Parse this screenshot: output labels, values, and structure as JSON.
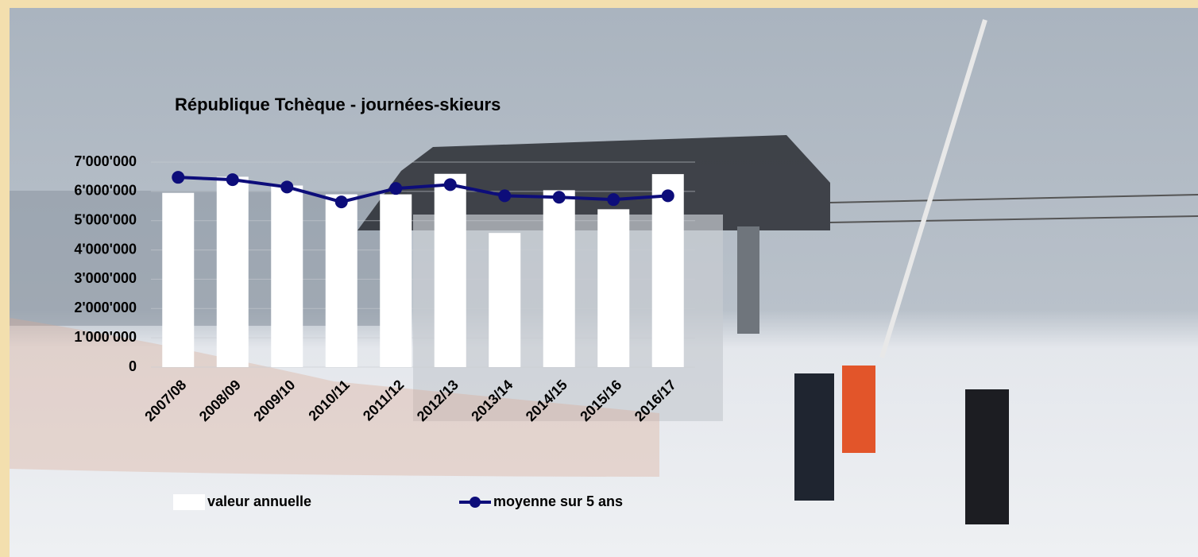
{
  "chart_data": {
    "type": "bar",
    "title": "République Tchèque - journées-skieurs",
    "categories": [
      "2007/08",
      "2008/09",
      "2009/10",
      "2010/11",
      "2011/12",
      "2012/13",
      "2013/14",
      "2014/15",
      "2015/16",
      "2016/17"
    ],
    "series": [
      {
        "name": "valeur annuelle",
        "type": "bar",
        "color": "#ffffff",
        "values": [
          5950000,
          6500000,
          6200000,
          5900000,
          5900000,
          6600000,
          4580000,
          6040000,
          5390000,
          6590000
        ]
      },
      {
        "name": "moyenne sur 5 ans",
        "type": "line",
        "color": "#0d0d7a",
        "values": [
          6480000,
          6400000,
          6150000,
          5640000,
          6100000,
          6230000,
          5850000,
          5800000,
          5720000,
          5850000
        ]
      }
    ],
    "ylim": [
      0,
      7000000
    ],
    "yticks": [
      {
        "value": 0,
        "label": "0"
      },
      {
        "value": 1000000,
        "label": "1'000'000"
      },
      {
        "value": 2000000,
        "label": "2'000'000"
      },
      {
        "value": 3000000,
        "label": "3'000'000"
      },
      {
        "value": 4000000,
        "label": "4'000'000"
      },
      {
        "value": 5000000,
        "label": "5'000'000"
      },
      {
        "value": 6000000,
        "label": "6'000'000"
      },
      {
        "value": 7000000,
        "label": "7'000'000"
      }
    ],
    "grid": true,
    "legend": "bottom"
  }
}
